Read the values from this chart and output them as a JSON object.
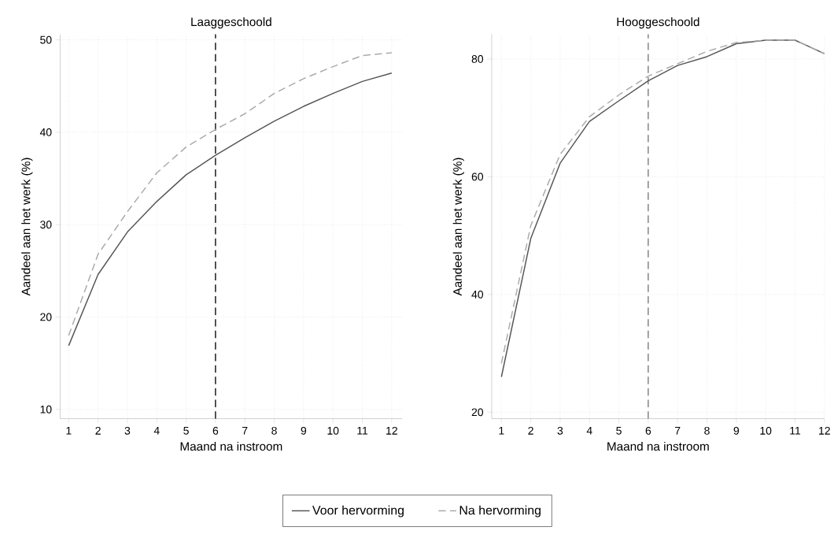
{
  "chart_data": [
    {
      "type": "line",
      "title": "Laaggeschoold",
      "xlabel": "Maand na instroom",
      "ylabel": "Aandeel aan het werk (%)",
      "x": [
        1,
        2,
        3,
        4,
        5,
        6,
        7,
        8,
        9,
        10,
        11,
        12
      ],
      "xlim": [
        0.71,
        12.36
      ],
      "ylim": [
        9,
        50.6
      ],
      "xticks": [
        1,
        2,
        3,
        4,
        5,
        6,
        7,
        8,
        9,
        10,
        11,
        12
      ],
      "yticks": [
        10,
        20,
        30,
        40,
        50
      ],
      "grid": true,
      "legend": "bottom",
      "series": [
        {
          "name": "Voor hervorming",
          "color": "#555555",
          "line_style": "solid",
          "values": [
            16.9,
            24.6,
            29.2,
            32.5,
            35.4,
            37.5,
            39.4,
            41.2,
            42.8,
            44.2,
            45.5,
            46.4
          ]
        },
        {
          "name": "Na hervorming",
          "color": "#aaaaaa",
          "line_style": "dashed",
          "values": [
            18.0,
            26.8,
            31.4,
            35.6,
            38.4,
            40.3,
            42.0,
            44.2,
            45.8,
            47.1,
            48.3,
            48.6
          ]
        }
      ],
      "ref_lines": [
        {
          "axis": "x",
          "value": 6,
          "color": "#000000",
          "line_style": "dashed"
        }
      ]
    },
    {
      "type": "line",
      "title": "Hooggeschoold",
      "xlabel": "Maand na instroom",
      "ylabel": "Aandeel aan het werk (%)",
      "x": [
        1,
        2,
        3,
        4,
        5,
        6,
        7,
        8,
        9,
        10,
        11,
        12
      ],
      "xlim": [
        0.67,
        12
      ],
      "ylim": [
        18.9,
        84.2
      ],
      "xticks": [
        1,
        2,
        3,
        4,
        5,
        6,
        7,
        8,
        9,
        10,
        11,
        12
      ],
      "yticks": [
        20,
        40,
        60,
        80
      ],
      "grid": true,
      "series": [
        {
          "color": "#555555",
          "line_style": "solid",
          "values": [
            26.0,
            49.5,
            62.3,
            69.4,
            72.9,
            76.3,
            78.9,
            80.4,
            82.6,
            83.2,
            83.2,
            80.9
          ]
        },
        {
          "color": "#aaaaaa",
          "line_style": "dashed",
          "values": [
            28.3,
            51.7,
            63.8,
            70.2,
            73.9,
            77.1,
            79.2,
            81.3,
            82.8,
            83.2,
            83.2,
            80.9
          ]
        }
      ],
      "ref_lines": [
        {
          "axis": "x",
          "value": 6,
          "color": "#777777",
          "line_style": "dashed"
        }
      ]
    }
  ]
}
